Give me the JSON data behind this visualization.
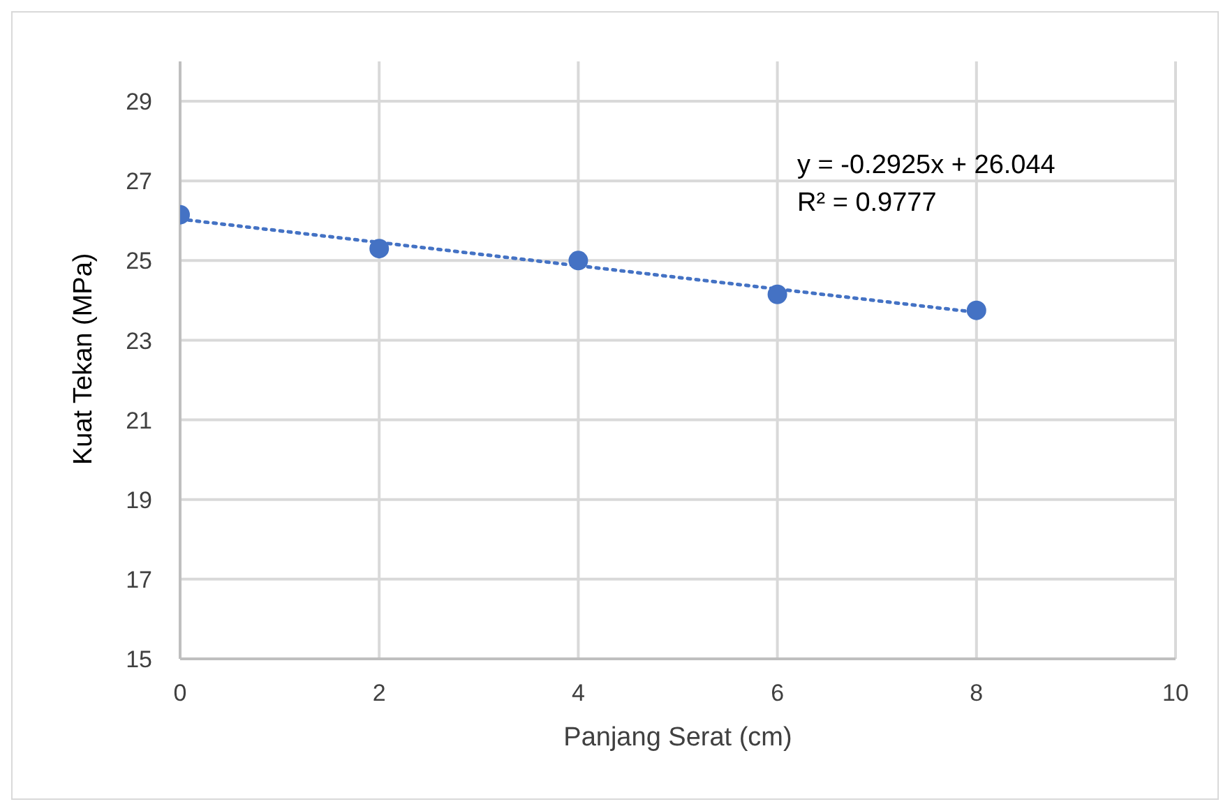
{
  "chart_data": {
    "type": "scatter",
    "xlabel": "Panjang Serat (cm)",
    "ylabel": "Kuat Tekan (MPa)",
    "x": [
      0,
      2,
      4,
      6,
      8
    ],
    "series": [
      {
        "color": "#4472c4",
        "values": [
          26.15,
          25.3,
          25.0,
          24.15,
          23.75
        ],
        "marker": "circle"
      },
      {
        "type": "line",
        "color": "#4472c4",
        "x": [
          0,
          8
        ],
        "values": [
          26.04,
          23.7
        ],
        "line_style": "dotted",
        "marker": "none"
      }
    ],
    "xlim": [
      0,
      10
    ],
    "xticks": [
      0,
      2,
      4,
      6,
      8,
      10
    ],
    "ylim": [
      15,
      30
    ],
    "yticks": [
      15,
      17,
      19,
      21,
      23,
      25,
      27,
      29
    ],
    "grid": true,
    "legend": false,
    "annotations": [
      "y  = -0.2925x + 26.044",
      "R²  = 0.9777"
    ]
  }
}
